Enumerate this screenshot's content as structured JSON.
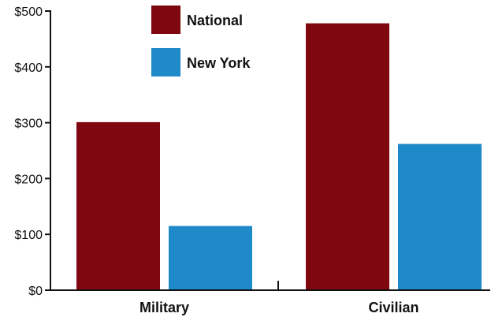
{
  "chart_data": {
    "type": "bar",
    "categories": [
      "Military",
      "Civilian"
    ],
    "series": [
      {
        "name": "National",
        "values": [
          301,
          478
        ],
        "color": "#7f070f"
      },
      {
        "name": "New York",
        "values": [
          115,
          262
        ],
        "color": "#1f8ac9"
      }
    ],
    "ylim": [
      0,
      500
    ],
    "yticks": [
      "$0",
      "$100",
      "$200",
      "$300",
      "$400",
      "$500"
    ],
    "ytick_values": [
      0,
      100,
      200,
      300,
      400,
      500
    ],
    "legend_position": "top-center",
    "grid": false
  }
}
